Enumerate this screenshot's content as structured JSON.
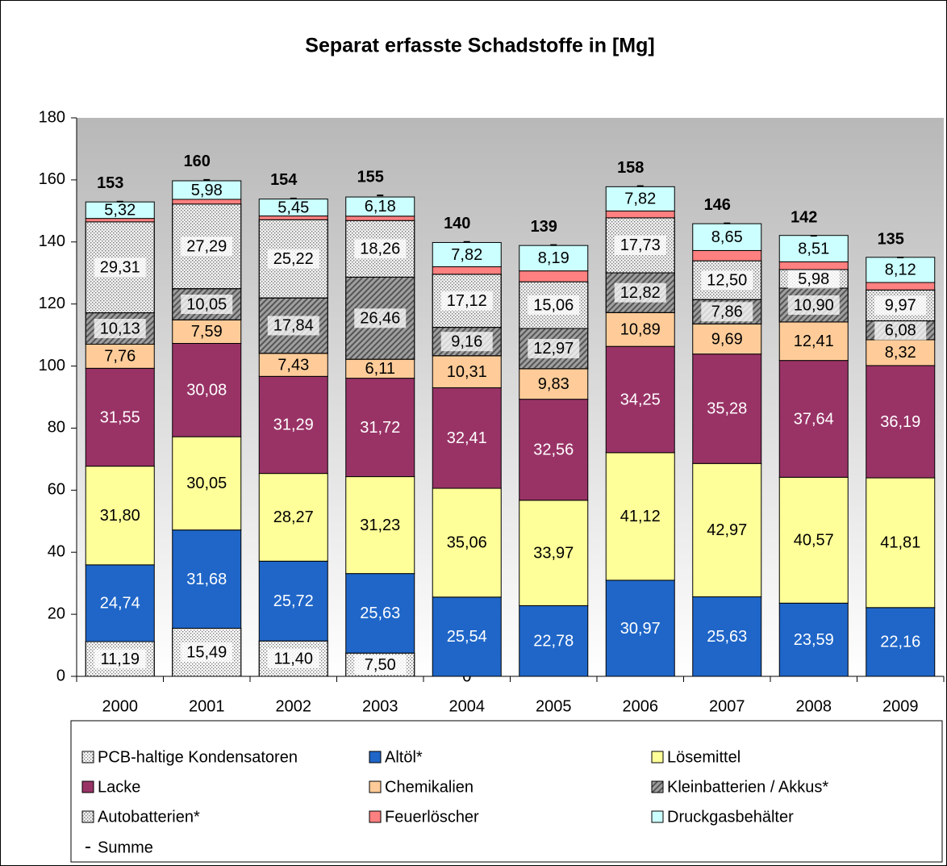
{
  "chart_data": {
    "type": "stacked_bar",
    "title": "Separat erfasste Schadstoffe in [Mg]",
    "categories": [
      "2000",
      "2001",
      "2002",
      "2003",
      "2004",
      "2005",
      "2006",
      "2007",
      "2008",
      "2009"
    ],
    "ylim": [
      0,
      180
    ],
    "yticks": [
      0,
      20,
      40,
      60,
      80,
      100,
      120,
      140,
      160,
      180
    ],
    "series": [
      {
        "name": "PCB-haltige Kondensatoren",
        "color": "#ffffff",
        "pattern": "dots",
        "values": [
          11.19,
          15.49,
          11.4,
          7.5,
          0,
          null,
          null,
          null,
          null,
          null
        ],
        "value_labels": [
          "11,19",
          "15,49",
          "11,40",
          "7,50",
          "0",
          null,
          null,
          null,
          null,
          null
        ]
      },
      {
        "name": "Altöl*",
        "color": "#1f66c8",
        "values": [
          24.74,
          31.68,
          25.72,
          25.63,
          25.54,
          22.78,
          30.97,
          25.63,
          23.59,
          22.16
        ],
        "value_labels": [
          "24,74",
          "31,68",
          "25,72",
          "25,63",
          "25,54",
          "22,78",
          "30,97",
          "25,63",
          "23,59",
          "22,16"
        ]
      },
      {
        "name": "Lösemittel",
        "color": "#ffff99",
        "values": [
          31.8,
          30.05,
          28.27,
          31.23,
          35.06,
          33.97,
          41.12,
          42.97,
          40.57,
          41.81
        ],
        "value_labels": [
          "31,80",
          "30,05",
          "28,27",
          "31,23",
          "35,06",
          "33,97",
          "41,12",
          "42,97",
          "40,57",
          "41,81"
        ]
      },
      {
        "name": "Lacke",
        "color": "#993366",
        "values": [
          31.55,
          30.08,
          31.29,
          31.72,
          32.41,
          32.56,
          34.25,
          35.28,
          37.64,
          36.19
        ],
        "value_labels": [
          "31,55",
          "30,08",
          "31,29",
          "31,72",
          "32,41",
          "32,56",
          "34,25",
          "35,28",
          "37,64",
          "36,19"
        ]
      },
      {
        "name": "Chemikalien",
        "color": "#ffcc99",
        "values": [
          7.76,
          7.59,
          7.43,
          6.11,
          10.31,
          9.83,
          10.89,
          9.69,
          12.41,
          8.32
        ],
        "value_labels": [
          "7,76",
          "7,59",
          "7,43",
          "6,11",
          "10,31",
          "9,83",
          "10,89",
          "9,69",
          "12,41",
          "8,32"
        ]
      },
      {
        "name": "Kleinbatterien / Akkus*",
        "color": "#a0a0a0",
        "pattern": "hatch",
        "values": [
          10.13,
          10.05,
          17.84,
          26.46,
          9.16,
          12.97,
          12.82,
          7.86,
          10.9,
          6.08
        ],
        "value_labels": [
          "10,13",
          "10,05",
          "17,84",
          "26,46",
          "9,16",
          "12,97",
          "12,82",
          "7,86",
          "10,90",
          "6,08"
        ]
      },
      {
        "name": "Autobatterien*",
        "color": "#f2f2f2",
        "pattern": "dots",
        "values": [
          29.31,
          27.29,
          25.22,
          18.26,
          17.12,
          15.06,
          17.73,
          12.5,
          5.98,
          9.97
        ],
        "value_labels": [
          "29,31",
          "27,29",
          "25,22",
          "18,26",
          "17,12",
          "15,06",
          "17,73",
          "12,50",
          "5,98",
          "9,97"
        ]
      },
      {
        "name": "Feuerlöscher",
        "color": "#ff8080",
        "values": [
          1.1,
          1.5,
          1.2,
          1.4,
          2.4,
          3.5,
          2.2,
          3.3,
          2.5,
          2.4
        ]
      },
      {
        "name": "Druckgasbehälter",
        "color": "#ccffff",
        "values": [
          5.32,
          5.98,
          5.45,
          6.18,
          7.82,
          8.19,
          7.82,
          8.65,
          8.51,
          8.12
        ],
        "value_labels": [
          "5,32",
          "5,98",
          "5,45",
          "6,18",
          "7,82",
          "8,19",
          "7,82",
          "8,65",
          "8,51",
          "8,12"
        ]
      }
    ],
    "totals": {
      "name": "Summe",
      "values": [
        153,
        160,
        154,
        155,
        140,
        139,
        158,
        146,
        142,
        135
      ]
    }
  }
}
